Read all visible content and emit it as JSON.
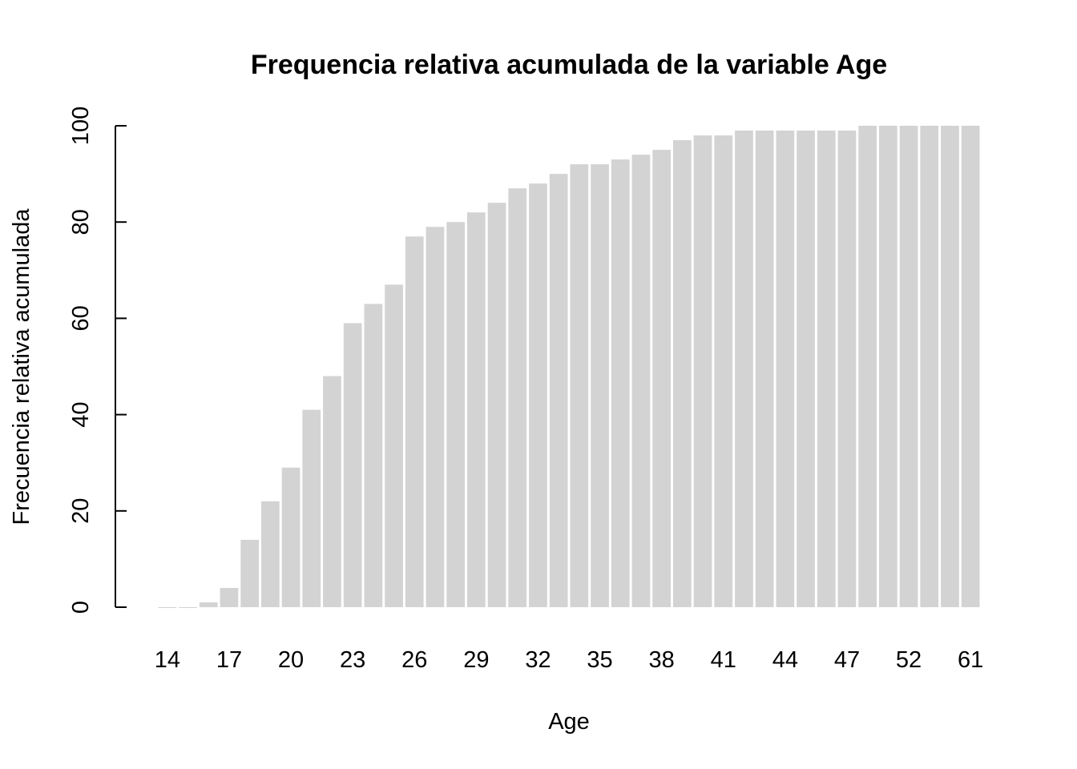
{
  "chart_data": {
    "type": "bar",
    "title": "Frequencia relativa acumulada de la variable Age",
    "xlabel": "Age",
    "ylabel": "Frecuencia relativa acumulada",
    "categories": [
      "14",
      "15",
      "16",
      "17",
      "18",
      "19",
      "20",
      "21",
      "22",
      "23",
      "24",
      "25",
      "26",
      "27",
      "28",
      "29",
      "30",
      "31",
      "32",
      "33",
      "34",
      "35",
      "36",
      "37",
      "38",
      "39",
      "40",
      "41",
      "42",
      "43",
      "44",
      "45",
      "46",
      "47",
      "48",
      "50",
      "52",
      "54",
      "58",
      "61"
    ],
    "x_tick_labels": [
      "14",
      "17",
      "20",
      "23",
      "26",
      "29",
      "32",
      "35",
      "38",
      "41",
      "44",
      "47",
      "52",
      "61"
    ],
    "values": [
      0,
      0,
      1,
      4,
      14,
      22,
      29,
      41,
      48,
      59,
      63,
      67,
      77,
      79,
      80,
      82,
      84,
      87,
      88,
      90,
      92,
      92,
      93,
      94,
      95,
      97,
      98,
      98,
      99,
      99,
      99,
      99,
      99,
      99,
      100,
      100,
      100,
      100,
      100,
      100
    ],
    "ylim": [
      0,
      100
    ],
    "y_ticks": [
      "0",
      "20",
      "40",
      "60",
      "80",
      "100"
    ],
    "grid": false,
    "bar_color": "#d3d3d3"
  }
}
